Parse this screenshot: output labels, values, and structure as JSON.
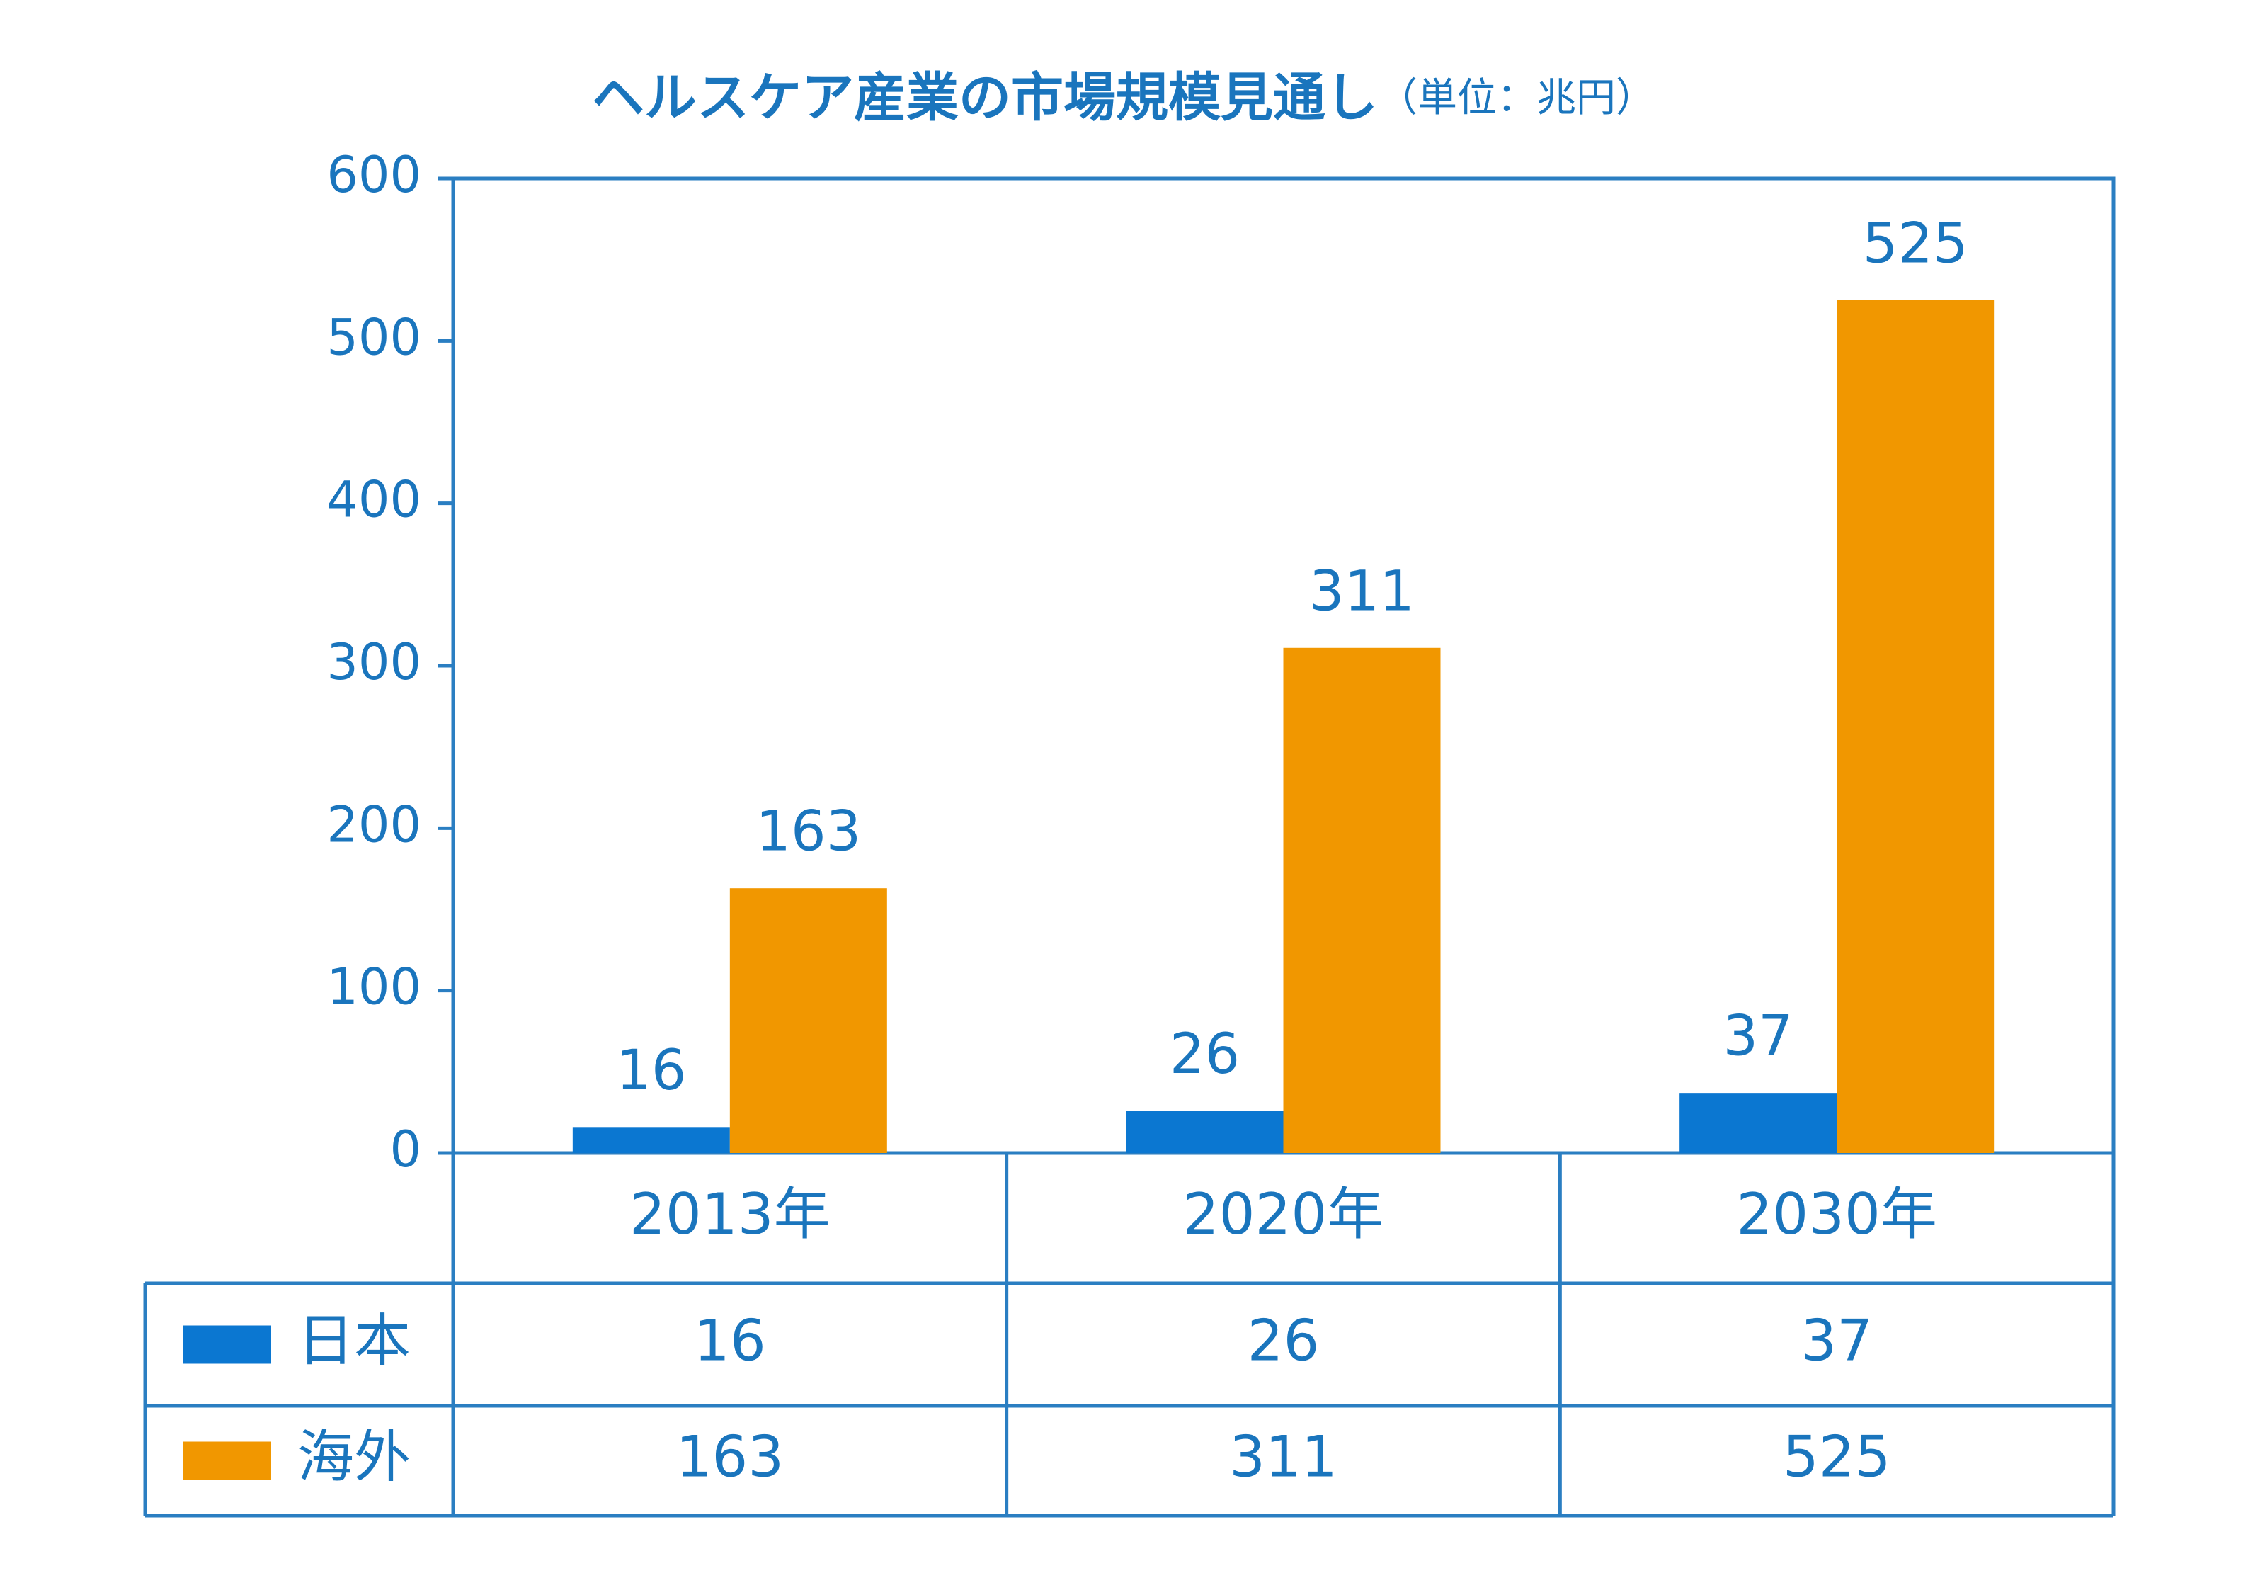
{
  "colors": {
    "accent": "#1a75bd",
    "japan": "#0b77d1",
    "overseas": "#f19700",
    "frame": "#2a7ec2",
    "background": "#ffffff"
  },
  "chart_data": {
    "type": "bar",
    "title": "ヘルスケア産業の市場規模見通し",
    "unit_note": "（単位：兆円）",
    "categories": [
      "2013年",
      "2020年",
      "2030年"
    ],
    "series": [
      {
        "name": "日本",
        "color": "#0b77d1",
        "values": [
          16,
          26,
          37
        ]
      },
      {
        "name": "海外",
        "color": "#f19700",
        "values": [
          163,
          311,
          525
        ]
      }
    ],
    "y_ticks": [
      0,
      100,
      200,
      300,
      400,
      500,
      600
    ],
    "ylim": [
      0,
      600
    ],
    "grid": false,
    "legend": "data table below chart",
    "data_table": {
      "rows": [
        {
          "series": "日本",
          "values": [
            "16",
            "26",
            "37"
          ]
        },
        {
          "series": "海外",
          "values": [
            "163",
            "311",
            "525"
          ]
        }
      ]
    }
  }
}
